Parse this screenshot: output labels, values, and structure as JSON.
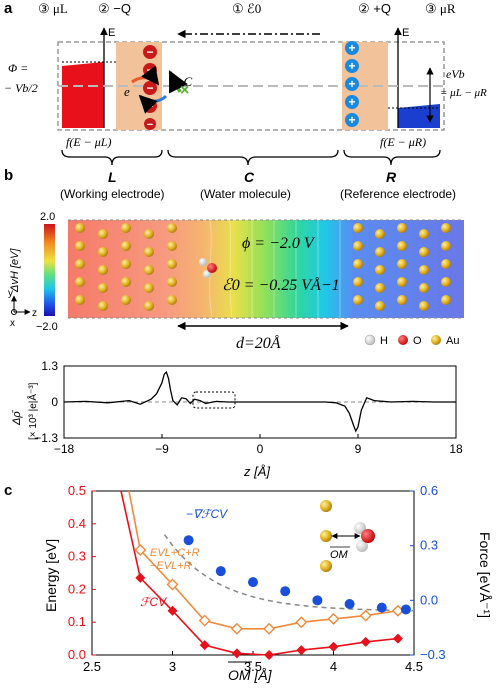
{
  "panel_a": {
    "label": "a",
    "top_labels": {
      "left_mu": "③ μL",
      "left_q": "② −Q",
      "center": "① ℰ0",
      "right_q": "② +Q",
      "right_mu": "③ μR"
    },
    "axis_E": "E",
    "phi_label_1": "Φ =",
    "phi_label_2": "− Vb/2",
    "electron": "e",
    "pc_label": "pC",
    "bias_label": "eVb",
    "bias_eq": "= μL − μR",
    "fermi_left": "f(E − μL)",
    "fermi_right": "f(E − μR)",
    "minus_sign": "−",
    "plus_sign": "+",
    "braces": [
      {
        "letter": "L",
        "caption": "(Working electrode)"
      },
      {
        "letter": "C",
        "caption": "(Water molecule)"
      },
      {
        "letter": "R",
        "caption": "(Reference electrode)"
      }
    ]
  },
  "panel_b": {
    "label": "b",
    "colorbar_max": "2.0",
    "colorbar_min": "−2.0",
    "colorbar_label": "ΔvH [eV]",
    "phi_text": "ϕ = −2.0 V",
    "field_text": "ℰ0 = −0.25 VÅ−1",
    "distance_text": "d=20Å",
    "legend": [
      {
        "label": "H",
        "color": "#f0f0f0"
      },
      {
        "label": "O",
        "color": "#e01010"
      },
      {
        "label": "Au",
        "color": "#d8a820"
      }
    ],
    "axes_y": "y",
    "axes_z": "z",
    "axes_x": "x",
    "density_label_1": "Δρ̄",
    "density_label_2": "[× 10³ |e|Å⁻³]",
    "xlabel": "z [Å]"
  },
  "panel_c": {
    "label": "c",
    "ylabel_left": "Energy [eV]",
    "ylabel_right": "Force [eVÅ⁻¹]",
    "xlabel": "OM [Å]",
    "legend_force": "−∇ℱCV",
    "legend_e1": "EVL+C+R",
    "legend_e2": "−EVL+R",
    "legend_f": "ℱCV",
    "inset_label": "OM"
  },
  "colors": {
    "red": "#e8101a",
    "orange": "#f08a3a",
    "blue": "#1a4fd8",
    "electrode": "#f2c29a"
  },
  "chart_data": [
    {
      "type": "line",
      "title": "",
      "xlabel": "z [Å]",
      "ylabel": "Δρ̄ [× 10³ |e|Å⁻³]",
      "xlim": [
        -18,
        18
      ],
      "ylim": [
        -1.3,
        1.3
      ],
      "xticks": [
        -18,
        -9,
        0,
        9,
        18
      ],
      "yticks": [
        1.3,
        0,
        -1.3
      ],
      "series": [
        {
          "x": [
            -18,
            -16,
            -14,
            -12,
            -11,
            -10,
            -9.5,
            -9,
            -8.8,
            -8.6,
            -8.4,
            -8.2,
            -8,
            -7.6,
            -7.2,
            -6.8,
            -6.4,
            -6,
            -5.5,
            -5,
            -4,
            -3,
            -1,
            0,
            2,
            4,
            6,
            7,
            7.8,
            8.2,
            8.6,
            8.8,
            9,
            9.3,
            9.8,
            10.5,
            12,
            14,
            16,
            18
          ],
          "y": [
            0,
            0.02,
            -0.03,
            0.05,
            -0.08,
            0.1,
            0.3,
            0.7,
            1.0,
            1.08,
            0.85,
            0.4,
            0.05,
            -0.1,
            0.15,
            0.12,
            -0.05,
            0.1,
            0.05,
            -0.05,
            0.02,
            0,
            0,
            0,
            0,
            0,
            0,
            -0.03,
            -0.15,
            -0.4,
            -0.85,
            -1.05,
            -0.9,
            -0.3,
            0.15,
            0.05,
            0,
            0.02,
            0,
            0
          ]
        }
      ]
    },
    {
      "type": "line",
      "title": "",
      "xlabel": "OM [Å]",
      "ylabel": "Energy [eV]",
      "xlim": [
        2.5,
        4.5
      ],
      "ylim": [
        0,
        0.5
      ],
      "y2lim": [
        -0.3,
        0.6
      ],
      "xticks": [
        2.5,
        3,
        3.5,
        4,
        4.5
      ],
      "yticks": [
        0,
        0.1,
        0.2,
        0.3,
        0.4,
        0.5
      ],
      "y2ticks": [
        -0.3,
        0,
        0.3,
        0.6
      ],
      "series": [
        {
          "name": "ℱCV",
          "axis": "left",
          "marker": "diamond-filled",
          "x": [
            2.8,
            3.0,
            3.2,
            3.4,
            3.6,
            3.8,
            4.0,
            4.2,
            4.4
          ],
          "y": [
            0.235,
            0.135,
            0.03,
            0.005,
            0.0,
            0.015,
            0.025,
            0.04,
            0.05
          ]
        },
        {
          "name": "EVL+C+R − EVL+R",
          "axis": "left",
          "marker": "diamond-open",
          "x": [
            2.8,
            3.0,
            3.2,
            3.4,
            3.6,
            3.8,
            4.0,
            4.2,
            4.4
          ],
          "y": [
            0.32,
            0.215,
            0.105,
            0.08,
            0.08,
            0.1,
            0.11,
            0.12,
            0.135
          ]
        },
        {
          "name": "−∇ℱCV",
          "axis": "right",
          "marker": "circle-filled",
          "x": [
            3.1,
            3.3,
            3.5,
            3.7,
            3.9,
            4.1,
            4.3,
            4.45
          ],
          "y": [
            0.33,
            0.16,
            0.1,
            0.05,
            0.0,
            -0.02,
            -0.04,
            -0.05
          ]
        }
      ]
    }
  ]
}
